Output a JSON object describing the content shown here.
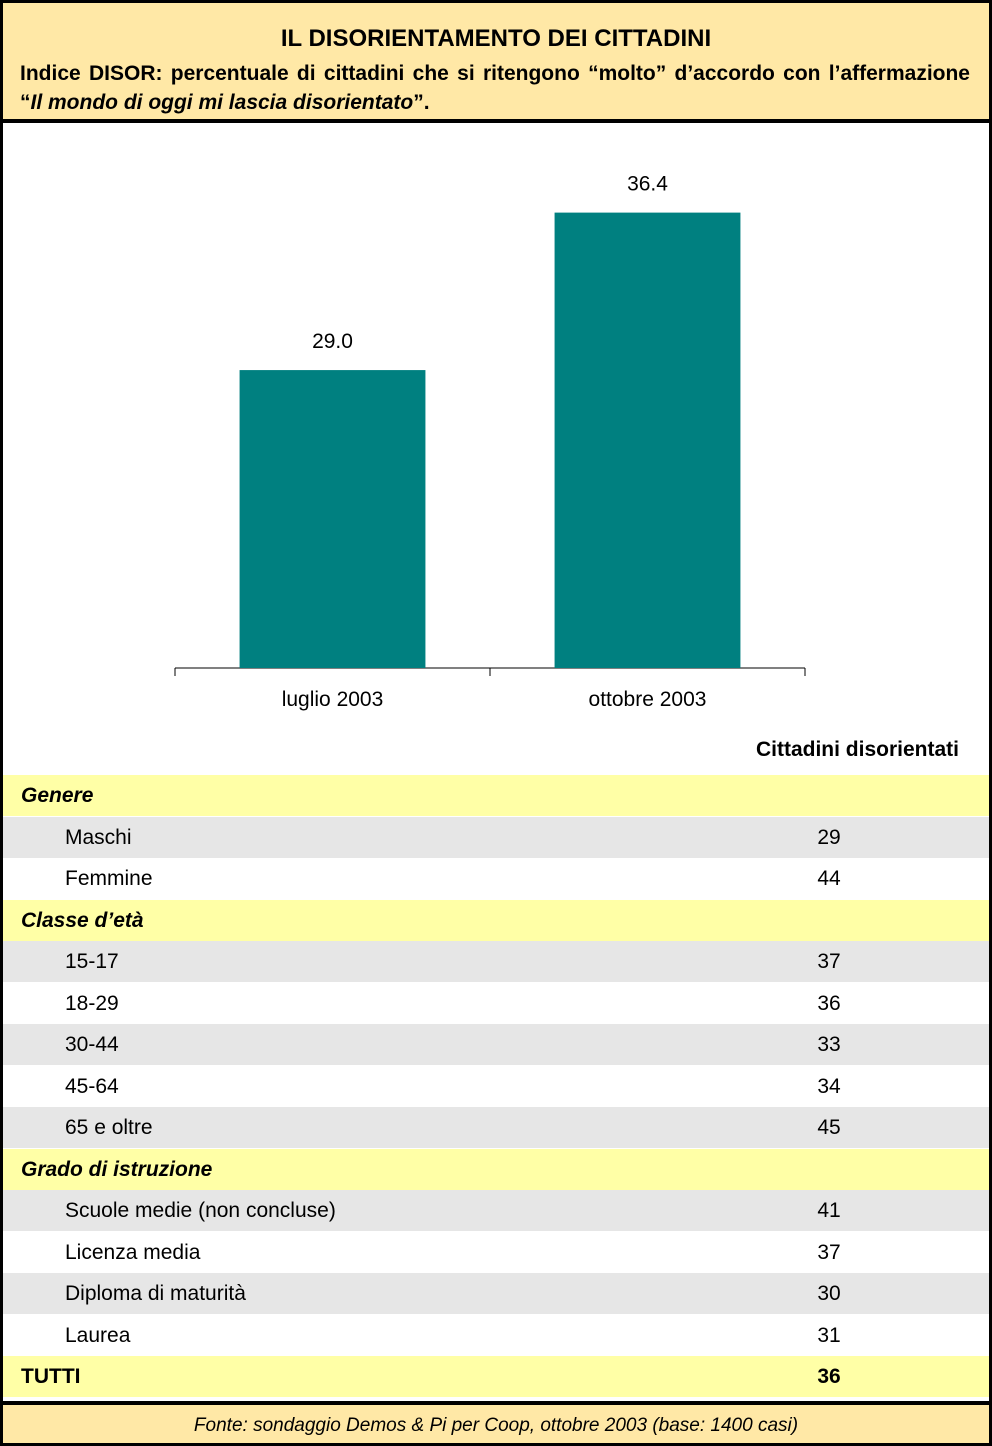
{
  "header": {
    "title": "IL DISORIENTAMENTO DEI CITTADINI",
    "subtitle": [
      "Indice DISOR: percentuale di cittadini che si ritengono “molto” d’accordo con l’affermazione “",
      "Il mondo di oggi mi lascia disorientato",
      "”."
    ]
  },
  "chart_data": {
    "type": "bar",
    "categories": [
      "luglio 2003",
      "ottobre 2003"
    ],
    "values": [
      29.0,
      36.4
    ],
    "value_labels": [
      "29.0",
      "36.4"
    ],
    "color": "#008080",
    "ylim": [
      15,
      40
    ]
  },
  "table": {
    "header": "Cittadini disorientati",
    "groups": [
      {
        "label": "Genere",
        "rows": [
          [
            "Maschi",
            29
          ],
          [
            "Femmine",
            44
          ]
        ]
      },
      {
        "label": "Classe d’età",
        "rows": [
          [
            "15-17",
            37
          ],
          [
            "18-29",
            36
          ],
          [
            "30-44",
            33
          ],
          [
            "45-64",
            34
          ],
          [
            "65 e oltre",
            45
          ]
        ]
      },
      {
        "label": "Grado di istruzione",
        "rows": [
          [
            "Scuole medie (non concluse)",
            41
          ],
          [
            "Licenza media",
            37
          ],
          [
            "Diploma di maturità",
            30
          ],
          [
            "Laurea",
            31
          ]
        ]
      }
    ],
    "total": [
      "TUTTI",
      36
    ]
  },
  "footer": "Fonte: sondaggio Demos & Pi per Coop, ottobre 2003 (base: 1400 casi)"
}
